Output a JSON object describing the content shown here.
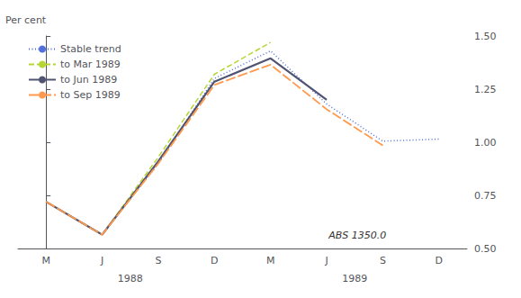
{
  "chart_data": {
    "type": "line",
    "categories": [
      "M",
      "J",
      "S",
      "D",
      "M",
      "J",
      "S",
      "D"
    ],
    "series": [
      {
        "name": "Stable trend",
        "line_style": "dotted",
        "values": [
          0.72,
          0.565,
          0.9,
          1.3,
          1.43,
          1.18,
          1.005,
          1.015
        ]
      },
      {
        "name": "to Mar 1989",
        "line_style": "dashed",
        "values": [
          0.72,
          0.565,
          0.93,
          1.32,
          1.47,
          null,
          null,
          null
        ]
      },
      {
        "name": "to Jun 1989",
        "line_style": "solid",
        "values": [
          0.72,
          0.565,
          0.91,
          1.285,
          1.395,
          1.2,
          null,
          null
        ]
      },
      {
        "name": "to Sep 1989",
        "line_style": "longdash",
        "values": [
          0.72,
          0.565,
          0.9,
          1.27,
          1.365,
          1.155,
          0.985,
          null
        ]
      }
    ],
    "y_label": "Per cent",
    "ylim": [
      0.5,
      1.5
    ],
    "yticks": [
      {
        "value": 0.5,
        "label": "0.50"
      },
      {
        "value": 0.75,
        "label": "0.75"
      },
      {
        "value": 1.0,
        "label": "1.00"
      },
      {
        "value": 1.25,
        "label": "1.25"
      },
      {
        "value": 1.5,
        "label": "1.50"
      }
    ],
    "annotations": [
      {
        "text": "1988",
        "x": 1.5
      },
      {
        "text": "1989",
        "x": 5.5
      },
      {
        "text": "ABS 1350.0"
      }
    ],
    "legend": "upper left",
    "grid": false
  }
}
